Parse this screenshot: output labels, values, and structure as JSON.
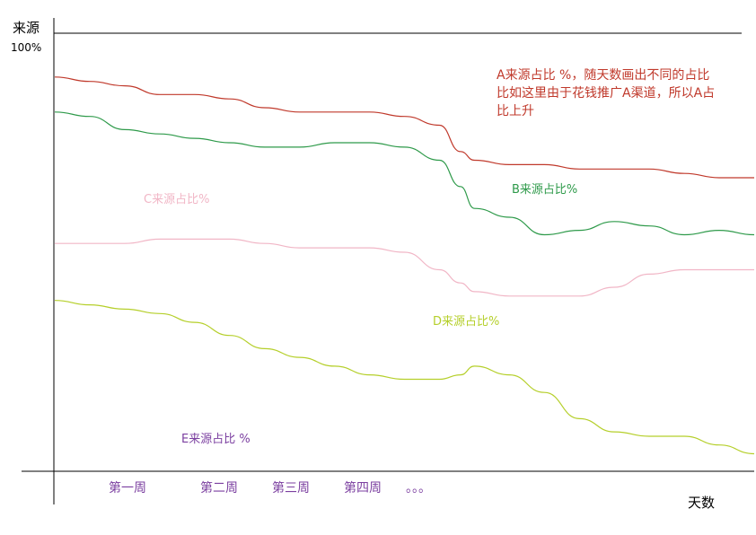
{
  "chart_data": {
    "type": "line",
    "ylabel": "来源",
    "ytick_top": "100%",
    "xlabel": "天数",
    "ylim": [
      0,
      100
    ],
    "xlim": [
      0,
      100
    ],
    "categories": [
      "第一周",
      "第二周",
      "第三周",
      "第四周",
      "。。。"
    ],
    "x": [
      0,
      5,
      10,
      15,
      20,
      25,
      30,
      35,
      40,
      45,
      50,
      55,
      58,
      60,
      65,
      70,
      75,
      80,
      85,
      90,
      95,
      100
    ],
    "series": [
      {
        "name": "A来源占比 %",
        "color": "#c0392b",
        "values": [
          90,
          89,
          88,
          86,
          86,
          85,
          83,
          82,
          82,
          82,
          81,
          79,
          73,
          71,
          70,
          70,
          69,
          69,
          69,
          68,
          67,
          67
        ]
      },
      {
        "name": "B来源占比%",
        "color": "#2e9a4a",
        "values": [
          82,
          81,
          78,
          77,
          76,
          75,
          74,
          74,
          75,
          75,
          74,
          71,
          65,
          60,
          58,
          54,
          55,
          57,
          56,
          54,
          55,
          54
        ]
      },
      {
        "name": "C来源占比%",
        "color": "#f1b6c6",
        "values": [
          52,
          52,
          52,
          53,
          53,
          53,
          52,
          51,
          51,
          51,
          50,
          46,
          43,
          41,
          40,
          40,
          40,
          42,
          45,
          46,
          46,
          46
        ]
      },
      {
        "name": "D来源占比%",
        "color": "#b5cf2a",
        "values": [
          39,
          38,
          37,
          36,
          34,
          31,
          28,
          26,
          24,
          22,
          21,
          21,
          22,
          24,
          22,
          18,
          12,
          9,
          8,
          8,
          6,
          4
        ]
      }
    ],
    "annotations": {
      "a_note_line1": "A来源占比 %，随天数画出不同的占比",
      "a_note_line2": "比如这里由于花钱推广A渠道，所以A占",
      "a_note_line3": "比上升",
      "b_label": "B来源占比%",
      "c_label": "C来源占比%",
      "d_label": "D来源占比%",
      "e_label": "E来源占比 %"
    }
  }
}
